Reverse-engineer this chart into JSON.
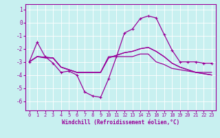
{
  "xlabel": "Windchill (Refroidissement éolien,°C)",
  "background_color": "#c8f0f0",
  "grid_color": "#ffffff",
  "line_color": "#990099",
  "xlim": [
    -0.5,
    23.5
  ],
  "ylim": [
    -6.7,
    1.4
  ],
  "yticks": [
    1,
    0,
    -1,
    -2,
    -3,
    -4,
    -5,
    -6
  ],
  "xticks": [
    0,
    1,
    2,
    3,
    4,
    5,
    6,
    7,
    8,
    9,
    10,
    11,
    12,
    13,
    14,
    15,
    16,
    17,
    18,
    19,
    20,
    21,
    22,
    23
  ],
  "line1_x": [
    0,
    1,
    2,
    3,
    4,
    5,
    6,
    7,
    8,
    9,
    10,
    11,
    12,
    13,
    14,
    15,
    16,
    17,
    18,
    19,
    20,
    21,
    22,
    23
  ],
  "line1_y": [
    -3.0,
    -1.5,
    -2.6,
    -3.1,
    -3.8,
    -3.7,
    -4.0,
    -5.3,
    -5.6,
    -5.7,
    -4.3,
    -2.6,
    -0.8,
    -0.5,
    0.3,
    0.5,
    0.35,
    -0.9,
    -2.1,
    -3.0,
    -3.0,
    -3.0,
    -3.1,
    -3.1
  ],
  "line2_x": [
    0,
    1,
    2,
    3,
    4,
    5,
    6,
    7,
    8,
    9,
    10,
    11,
    12,
    13,
    14,
    15,
    16,
    17,
    18,
    19,
    20,
    21,
    22,
    23
  ],
  "line2_y": [
    -3.0,
    -2.6,
    -2.7,
    -2.7,
    -3.4,
    -3.6,
    -3.8,
    -3.8,
    -3.8,
    -3.8,
    -2.6,
    -2.6,
    -2.6,
    -2.6,
    -2.4,
    -2.4,
    -3.0,
    -3.2,
    -3.5,
    -3.6,
    -3.7,
    -3.8,
    -3.8,
    -3.8
  ],
  "line3_x": [
    0,
    1,
    2,
    3,
    4,
    5,
    6,
    7,
    8,
    9,
    10,
    11,
    12,
    13,
    14,
    15,
    16,
    17,
    18,
    19,
    20,
    21,
    22,
    23
  ],
  "line3_y": [
    -3.0,
    -2.6,
    -2.65,
    -2.7,
    -3.4,
    -3.6,
    -3.8,
    -3.8,
    -3.8,
    -3.8,
    -2.7,
    -2.5,
    -2.3,
    -2.2,
    -2.0,
    -1.9,
    -2.2,
    -2.6,
    -3.1,
    -3.4,
    -3.6,
    -3.8,
    -3.9,
    -4.0
  ],
  "line4_x": [
    0,
    1,
    2,
    3,
    4,
    5,
    6,
    7,
    8,
    9,
    10,
    11,
    12,
    13,
    14,
    15,
    16,
    17,
    18,
    19,
    20,
    21,
    22,
    23
  ],
  "line4_y": [
    -3.0,
    -2.6,
    -2.65,
    -2.7,
    -3.4,
    -3.6,
    -3.8,
    -3.8,
    -3.8,
    -3.8,
    -2.7,
    -2.5,
    -2.3,
    -2.2,
    -2.0,
    -1.9,
    -2.2,
    -2.6,
    -3.1,
    -3.4,
    -3.6,
    -3.8,
    -3.9,
    -4.0
  ]
}
